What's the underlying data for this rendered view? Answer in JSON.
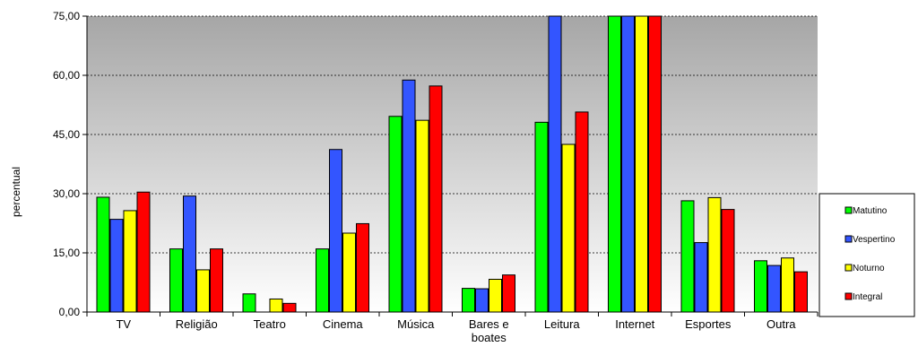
{
  "chart_data": {
    "type": "bar",
    "title": "",
    "xlabel": "",
    "ylabel": "percentual",
    "ylim": [
      0,
      75
    ],
    "yticks": [
      "0,00",
      "15,00",
      "30,00",
      "45,00",
      "60,00",
      "75,00"
    ],
    "grid": true,
    "legend": "right",
    "categories": [
      "TV",
      "Religião",
      "Teatro",
      "Cinema",
      "Música",
      "Bares e boates",
      "Leitura",
      "Internet",
      "Esportes",
      "Outra"
    ],
    "series": [
      {
        "name": "Matutino",
        "color": "#00ff00",
        "values": [
          29.1,
          16.0,
          4.6,
          16.0,
          49.6,
          6.0,
          48.1,
          75.0,
          28.2,
          13.0
        ]
      },
      {
        "name": "Vespertino",
        "color": "#3355ff",
        "values": [
          23.5,
          29.4,
          0.0,
          41.2,
          58.8,
          5.9,
          75.0,
          75.0,
          17.6,
          11.8
        ]
      },
      {
        "name": "Noturno",
        "color": "#ffff00",
        "values": [
          25.7,
          10.7,
          3.3,
          20.0,
          48.6,
          8.3,
          42.5,
          75.0,
          29.0,
          13.7
        ]
      },
      {
        "name": "Integral",
        "color": "#ff0000",
        "values": [
          30.4,
          16.0,
          2.2,
          22.4,
          57.3,
          9.4,
          50.7,
          75.0,
          26.0,
          10.2
        ]
      }
    ]
  }
}
